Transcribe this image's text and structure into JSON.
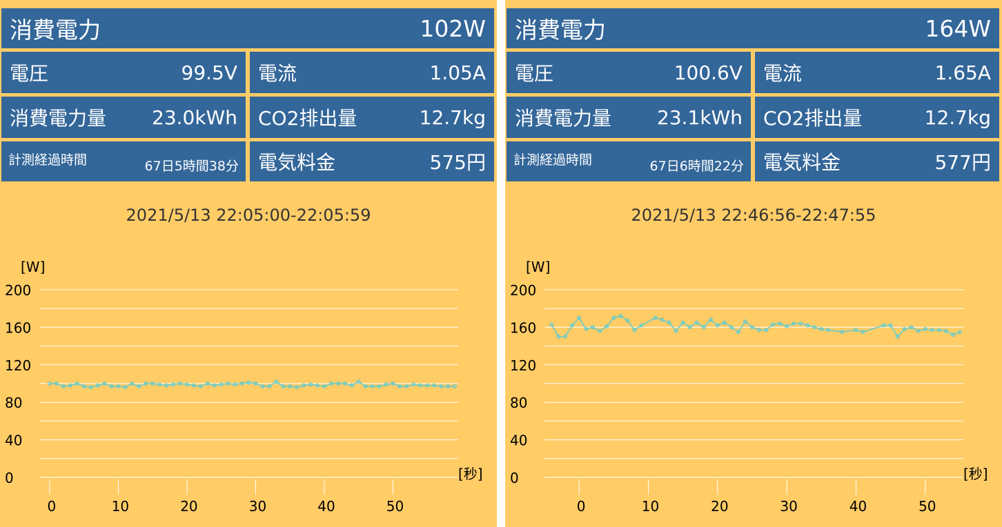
{
  "labels": {
    "power": "消費電力",
    "voltage": "電圧",
    "current": "電流",
    "energy": "消費電力量",
    "co2": "CO2排出量",
    "elapsed": "計測経過時間",
    "fee": "電気料金",
    "y_unit": "[W]",
    "x_unit": "[秒]"
  },
  "colors": {
    "background": "#ffcc66",
    "cell": "#336699",
    "line": "#66cccc",
    "grid": "#ffffff"
  },
  "panels": [
    {
      "power": "102W",
      "voltage": "99.5V",
      "current": "1.05A",
      "energy": "23.0kWh",
      "co2": "12.7kg",
      "elapsed": "67日5時間38分",
      "fee": "575円",
      "range": "2021/5/13 22:05:00-22:05:59"
    },
    {
      "power": "164W",
      "voltage": "100.6V",
      "current": "1.65A",
      "energy": "23.1kWh",
      "co2": "12.7kg",
      "elapsed": "67日6時間22分",
      "fee": "577円",
      "range": "2021/5/13 22:46:56-22:47:55"
    }
  ],
  "chart_data": [
    {
      "type": "line",
      "ylabel": "[W]",
      "xlabel": "[秒]",
      "ylim": [
        0,
        200
      ],
      "yticks": [
        0,
        40,
        80,
        120,
        160,
        200
      ],
      "xlim": [
        -1.5,
        59.5
      ],
      "xticks": [
        0,
        10,
        20,
        30,
        40,
        50
      ],
      "grid": true,
      "series": [
        {
          "x": [
            0,
            1,
            2,
            3,
            4,
            5,
            6,
            7,
            8,
            9,
            10,
            11,
            12,
            13,
            14,
            15,
            16,
            17,
            18,
            19,
            20,
            21,
            22,
            23,
            24,
            25,
            26,
            27,
            28,
            29,
            30,
            31,
            32,
            33,
            34,
            35,
            36,
            37,
            38,
            39,
            40,
            41,
            42,
            43,
            44,
            45,
            46,
            47,
            48,
            49,
            50,
            51,
            52,
            53,
            54,
            55,
            56,
            57,
            58,
            59
          ],
          "values": [
            100,
            100,
            97,
            98,
            100,
            97,
            96,
            98,
            100,
            97,
            97,
            96,
            100,
            97,
            100,
            100,
            99,
            98,
            99,
            100,
            99,
            98,
            97,
            100,
            98,
            99,
            100,
            99,
            100,
            101,
            100,
            97,
            97,
            102,
            97,
            97,
            96,
            98,
            99,
            98,
            97,
            100,
            100,
            100,
            98,
            102,
            97,
            97,
            97,
            99,
            100,
            97,
            97,
            99,
            98,
            98,
            98,
            97,
            97,
            97
          ]
        }
      ]
    },
    {
      "type": "line",
      "ylabel": "[W]",
      "xlabel": "[秒]",
      "ylim": [
        0,
        200
      ],
      "yticks": [
        0,
        40,
        80,
        120,
        160,
        200
      ],
      "xlim": [
        -5,
        55.5
      ],
      "xticks": [
        0,
        10,
        20,
        30,
        40,
        50
      ],
      "grid": true,
      "series": [
        {
          "x": [
            -4,
            -3,
            -2,
            -1,
            0,
            1,
            2,
            3,
            4,
            5,
            6,
            7,
            8,
            9,
            11,
            12,
            13,
            14,
            15,
            16,
            17,
            18,
            19,
            20,
            21,
            22,
            23,
            24,
            25,
            26,
            27,
            28,
            29,
            30,
            31,
            32,
            33,
            34,
            35,
            36,
            38,
            40,
            41,
            44,
            45,
            46,
            47,
            48,
            49,
            50,
            51,
            52,
            53,
            54,
            55
          ],
          "values": [
            163,
            150,
            150,
            162,
            170,
            158,
            160,
            156,
            161,
            170,
            172,
            167,
            157,
            162,
            170,
            168,
            165,
            156,
            165,
            160,
            165,
            160,
            168,
            162,
            165,
            160,
            155,
            166,
            160,
            157,
            157,
            163,
            164,
            161,
            164,
            164,
            162,
            160,
            158,
            157,
            155,
            157,
            155,
            162,
            162,
            150,
            158,
            160,
            156,
            158,
            157,
            157,
            156,
            152,
            155
          ]
        }
      ]
    }
  ]
}
